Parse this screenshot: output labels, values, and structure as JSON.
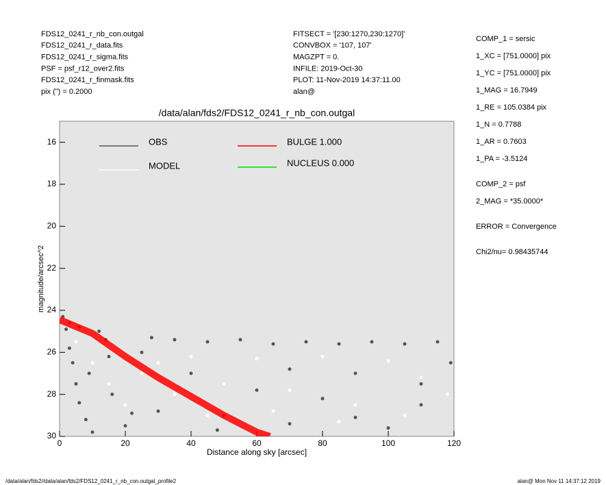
{
  "header": {
    "left": [
      "FDS12_0241_r_nb_con.outgal",
      "FDS12_0241_r_data.fits",
      "FDS12_0241_r_sigma.fits",
      "PSF     = psf_r12_over2.fits",
      "FDS12_0241_r_finmask.fits",
      "pix (\") =  0.2000"
    ],
    "middle": [
      "FITSECT = '[230:1270,230:1270]'",
      "CONVBOX = '107, 107'",
      "MAGZPT  =               0.",
      "INFILE: 2019-Oct-30",
      "PLOT: 11-Nov-2019 14:37:11.00",
      "alan@"
    ],
    "right": [
      "COMP_1   = sersic",
      "1_XC     = [751.0000] pix",
      "1_YC     = [751.0000] pix",
      "1_MAG    = 16.7949",
      "1_RE     = 105.0384 pix",
      "1_N      = 0.7788",
      "1_AR     = 0.7603",
      "1_PA     = -3.5124",
      "COMP_2   = psf",
      "2_MAG    = *35.0000*",
      "ERROR    = Convergence",
      "Chi2/nu=      0.98435744"
    ]
  },
  "footer": {
    "left": "/data/alan/fds2//data/alan/fds2/FDS12_0241_r_nb_con.outgal_profile2",
    "right": "alan@  Mon Nov 11 14:37:12 2019"
  },
  "chart_data": {
    "type": "scatter",
    "title": "/data/alan/fds2/FDS12_0241_r_nb_con.outgal",
    "x_label": "Distance along sky [arcsec]",
    "y_label": "magnitude/arcsec^2",
    "xlim": [
      0,
      120
    ],
    "ylim": [
      15,
      30
    ],
    "y_inverted": true,
    "xticks": [
      0,
      20,
      40,
      60,
      80,
      100,
      120
    ],
    "yticks": [
      16,
      18,
      20,
      22,
      24,
      26,
      28,
      30
    ],
    "grid": false,
    "series": [
      {
        "name": "OBS",
        "color": "#555555",
        "kind": "points",
        "x": [
          1,
          2,
          3,
          4,
          5,
          6,
          8,
          10,
          12,
          14,
          16,
          20,
          25,
          30,
          35,
          40,
          45,
          50,
          55,
          60,
          65,
          70,
          75,
          80,
          85,
          90,
          95,
          100,
          105,
          110,
          115,
          119,
          3,
          6,
          9,
          15,
          22,
          28,
          48,
          70,
          90,
          110
        ],
        "values": [
          24.3,
          24.9,
          25.8,
          26.5,
          27.5,
          28.4,
          29.2,
          29.8,
          25.0,
          25.4,
          28.0,
          29.5,
          26.0,
          28.8,
          25.4,
          27.0,
          25.5,
          29.0,
          25.4,
          27.8,
          25.6,
          29.4,
          25.5,
          28.2,
          25.6,
          27.0,
          25.5,
          29.6,
          25.6,
          28.5,
          25.5,
          26.5,
          24.6,
          24.8,
          27.0,
          26.2,
          28.9,
          25.3,
          29.7,
          26.8,
          29.1,
          27.5
        ]
      },
      {
        "name": "MODEL",
        "color": "#ffffff",
        "kind": "points",
        "x": [
          5,
          10,
          15,
          20,
          30,
          40,
          50,
          60,
          70,
          80,
          90,
          100,
          110,
          118,
          25,
          45,
          65,
          85,
          105,
          35
        ],
        "values": [
          25.5,
          26.5,
          27.5,
          28.5,
          26.5,
          26.2,
          27.5,
          26.3,
          27.8,
          26.2,
          28.5,
          26.4,
          27.2,
          28.0,
          27.0,
          29.0,
          28.8,
          29.3,
          29.0,
          28.0
        ]
      },
      {
        "name": "BULGE  1.000",
        "color": "#ff0000",
        "kind": "line",
        "x": [
          0,
          10,
          20,
          30,
          40,
          50,
          60,
          64
        ],
        "values": [
          24.45,
          25.1,
          26.2,
          27.2,
          28.1,
          29.0,
          29.8,
          30
        ]
      },
      {
        "name": "NUCLEUS  0.000",
        "color": "#00dd00",
        "kind": "line",
        "x": [],
        "values": []
      }
    ]
  }
}
